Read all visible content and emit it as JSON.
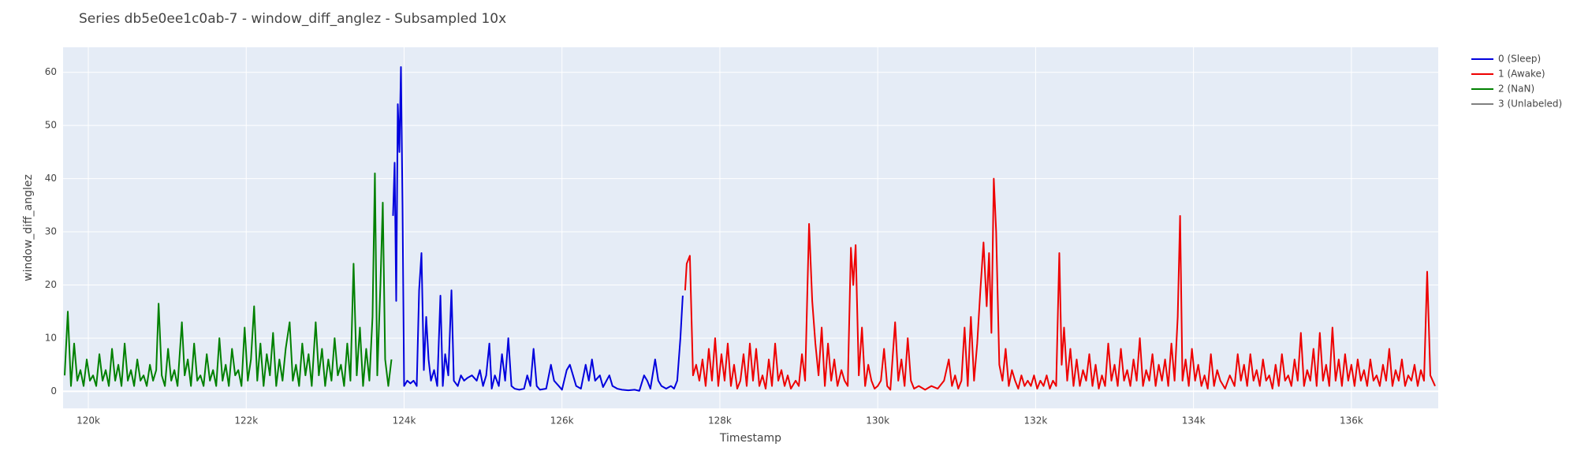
{
  "chart_data": {
    "type": "line",
    "title": "Series db5e0ee1c0ab-7 - window_diff_anglez - Subsampled 10x",
    "x_label": "Timestamp",
    "y_label": "window_diff_anglez",
    "xlim": [
      119680,
      137100
    ],
    "ylim": [
      -3.2,
      64.7
    ],
    "xticks": [
      {
        "value": 120000,
        "label": "120k"
      },
      {
        "value": 122000,
        "label": "122k"
      },
      {
        "value": 124000,
        "label": "124k"
      },
      {
        "value": 126000,
        "label": "126k"
      },
      {
        "value": 128000,
        "label": "128k"
      },
      {
        "value": 130000,
        "label": "130k"
      },
      {
        "value": 132000,
        "label": "132k"
      },
      {
        "value": 134000,
        "label": "134k"
      },
      {
        "value": 136000,
        "label": "136k"
      }
    ],
    "yticks": [
      0,
      10,
      20,
      30,
      40,
      50,
      60
    ],
    "grid": true,
    "legend": "right",
    "series": [
      {
        "name": "0 (Sleep)",
        "color": "#0000dd",
        "x": [
          123860,
          123880,
          123900,
          123920,
          123940,
          123960,
          123980,
          124000,
          124040,
          124080,
          124120,
          124160,
          124190,
          124220,
          124250,
          124280,
          124310,
          124340,
          124380,
          124420,
          124460,
          124490,
          124520,
          124560,
          124600,
          124630,
          124680,
          124720,
          124760,
          124800,
          124860,
          124920,
          124960,
          125000,
          125040,
          125080,
          125110,
          125150,
          125200,
          125240,
          125280,
          125320,
          125360,
          125400,
          125460,
          125520,
          125560,
          125600,
          125640,
          125680,
          125720,
          125800,
          125860,
          125900,
          125960,
          126000,
          126060,
          126100,
          126140,
          126180,
          126240,
          126300,
          126340,
          126380,
          126420,
          126480,
          126520,
          126600,
          126640,
          126700,
          126760,
          126840,
          126920,
          126980,
          127040,
          127080,
          127120,
          127180,
          127220,
          127260,
          127320,
          127380,
          127420,
          127460,
          127500,
          127530
        ],
        "values": [
          33,
          43,
          17,
          54,
          45,
          61,
          35,
          1,
          2,
          1.5,
          2,
          1,
          19,
          26,
          4,
          14,
          6,
          2,
          4,
          1,
          18,
          1,
          7,
          3,
          19,
          2,
          1,
          3,
          2,
          2.5,
          3,
          2,
          4,
          1,
          3,
          9,
          0.5,
          3,
          1,
          7,
          2,
          10,
          1,
          0.5,
          0.3,
          0.5,
          3,
          1,
          8,
          1,
          0.3,
          0.5,
          5,
          2,
          1,
          0.3,
          4,
          5,
          3,
          1,
          0.5,
          5,
          2,
          6,
          2,
          3,
          0.8,
          3,
          1,
          0.5,
          0.3,
          0.2,
          0.3,
          0.1,
          3,
          2,
          0.5,
          6,
          2,
          1,
          0.5,
          1,
          0.5,
          2,
          10,
          18
        ]
      },
      {
        "name": "1 (Awake)",
        "color": "#ee0000",
        "x": [
          127560,
          127580,
          127620,
          127660,
          127700,
          127740,
          127780,
          127820,
          127860,
          127900,
          127940,
          127980,
          128020,
          128060,
          128100,
          128140,
          128180,
          128220,
          128260,
          128300,
          128340,
          128380,
          128420,
          128460,
          128500,
          128540,
          128580,
          128620,
          128660,
          128700,
          128740,
          128780,
          128820,
          128860,
          128900,
          128960,
          129000,
          129040,
          129080,
          129130,
          129170,
          129210,
          129250,
          129290,
          129330,
          129370,
          129410,
          129450,
          129490,
          129540,
          129580,
          129620,
          129660,
          129690,
          129720,
          129760,
          129800,
          129840,
          129880,
          129920,
          129960,
          130000,
          130040,
          130080,
          130120,
          130160,
          130220,
          130260,
          130300,
          130340,
          130380,
          130420,
          130460,
          130520,
          130600,
          130680,
          130760,
          130840,
          130900,
          130940,
          130980,
          131020,
          131060,
          131100,
          131140,
          131180,
          131220,
          131260,
          131300,
          131340,
          131380,
          131410,
          131440,
          131470,
          131500,
          131540,
          131580,
          131620,
          131660,
          131700,
          131740,
          131780,
          131820,
          131860,
          131900,
          131940,
          131980,
          132020,
          132060,
          132100,
          132140,
          132180,
          132220,
          132260,
          132300,
          132330,
          132360,
          132400,
          132440,
          132480,
          132520,
          132560,
          132600,
          132640,
          132680,
          132720,
          132760,
          132800,
          132840,
          132880,
          132920,
          132960,
          133000,
          133040,
          133080,
          133120,
          133160,
          133200,
          133240,
          133280,
          133320,
          133360,
          133400,
          133440,
          133480,
          133520,
          133560,
          133600,
          133640,
          133680,
          133720,
          133760,
          133800,
          133830,
          133860,
          133900,
          133940,
          133980,
          134020,
          134060,
          134100,
          134140,
          134180,
          134220,
          134260,
          134300,
          134340,
          134400,
          134460,
          134520,
          134560,
          134600,
          134640,
          134680,
          134720,
          134760,
          134800,
          134840,
          134880,
          134920,
          134960,
          135000,
          135040,
          135080,
          135120,
          135160,
          135200,
          135240,
          135280,
          135320,
          135360,
          135400,
          135440,
          135480,
          135520,
          135560,
          135600,
          135640,
          135680,
          135720,
          135760,
          135800,
          135840,
          135880,
          135920,
          135960,
          136000,
          136040,
          136080,
          136120,
          136160,
          136200,
          136240,
          136280,
          136320,
          136360,
          136400,
          136440,
          136480,
          136520,
          136560,
          136600,
          136640,
          136680,
          136720,
          136760,
          136800,
          136840,
          136880,
          136920,
          136960,
          137000,
          137060
        ],
        "values": [
          19,
          24,
          25.5,
          3,
          5,
          2,
          6,
          1,
          8,
          2,
          10,
          1,
          7,
          2,
          9,
          1,
          5,
          0.5,
          2,
          7,
          1,
          9,
          2,
          8,
          1,
          3,
          0.5,
          6,
          1,
          9,
          2,
          4,
          1,
          3,
          0.5,
          2,
          1,
          7,
          2,
          31.5,
          17,
          9,
          3,
          12,
          1,
          9,
          2,
          6,
          1,
          4,
          2,
          1,
          27,
          20,
          27.5,
          3,
          12,
          1,
          5,
          2,
          0.5,
          1,
          2,
          8,
          1,
          0.3,
          13,
          2,
          6,
          1,
          10,
          2,
          0.5,
          1,
          0.3,
          1,
          0.5,
          2,
          6,
          1,
          3,
          0.5,
          2,
          12,
          1,
          14,
          2,
          9,
          19,
          28,
          16,
          26,
          11,
          40,
          30,
          5,
          2,
          8,
          1,
          4,
          2,
          0.5,
          3,
          1,
          2,
          1,
          3,
          0.5,
          2,
          1,
          3,
          0.5,
          2,
          1,
          26,
          5,
          12,
          2,
          8,
          1,
          6,
          1,
          4,
          2,
          7,
          1,
          5,
          0.5,
          3,
          1,
          9,
          2,
          5,
          1,
          8,
          2,
          4,
          1,
          6,
          2,
          10,
          1,
          4,
          2,
          7,
          1,
          5,
          2,
          6,
          1,
          9,
          2,
          14,
          33,
          2,
          6,
          1,
          8,
          2,
          5,
          1,
          3,
          0.5,
          7,
          1,
          4,
          2,
          0.5,
          3,
          1,
          7,
          2,
          5,
          1,
          7,
          2,
          4,
          1,
          6,
          2,
          3,
          0.5,
          5,
          1,
          7,
          2,
          3,
          1,
          6,
          2,
          11,
          1,
          4,
          2,
          8,
          1,
          11,
          2,
          5,
          1,
          12,
          2,
          6,
          1,
          7,
          2,
          5,
          1,
          6,
          2,
          4,
          1,
          6,
          2,
          3,
          1,
          5,
          2,
          8,
          1,
          4,
          2,
          6,
          1,
          3,
          2,
          5,
          1,
          4,
          2,
          22.5,
          3,
          1
        ]
      },
      {
        "name": "2 (NaN)",
        "color": "#008000",
        "x": [
          119700,
          119740,
          119780,
          119820,
          119860,
          119900,
          119940,
          119980,
          120020,
          120060,
          120100,
          120140,
          120180,
          120220,
          120260,
          120300,
          120340,
          120380,
          120420,
          120460,
          120500,
          120540,
          120580,
          120620,
          120660,
          120700,
          120740,
          120780,
          120820,
          120860,
          120890,
          120930,
          120970,
          121010,
          121050,
          121090,
          121130,
          121185,
          121220,
          121260,
          121300,
          121340,
          121380,
          121420,
          121460,
          121500,
          121540,
          121580,
          121620,
          121660,
          121700,
          121740,
          121780,
          121820,
          121860,
          121900,
          121940,
          121980,
          122020,
          122060,
          122100,
          122140,
          122180,
          122220,
          122260,
          122300,
          122340,
          122380,
          122420,
          122460,
          122500,
          122550,
          122590,
          122630,
          122670,
          122710,
          122750,
          122790,
          122830,
          122880,
          122920,
          122960,
          123000,
          123040,
          123080,
          123120,
          123160,
          123200,
          123240,
          123280,
          123320,
          123360,
          123400,
          123440,
          123480,
          123520,
          123560,
          123600,
          123630,
          123660,
          123700,
          123730,
          123760,
          123800,
          123840
        ],
        "values": [
          3,
          15,
          1,
          9,
          2,
          4,
          1,
          6,
          2,
          3,
          1,
          7,
          2,
          4,
          1,
          8,
          2,
          5,
          1,
          9,
          2,
          4,
          1,
          6,
          2,
          3,
          1,
          5,
          2,
          4,
          16.5,
          3,
          1,
          8,
          2,
          4,
          1,
          13,
          3,
          6,
          1,
          9,
          2,
          3,
          1,
          7,
          2,
          4,
          1,
          10,
          2,
          5,
          1,
          8,
          3,
          4,
          1,
          12,
          2,
          6,
          16,
          2,
          9,
          1,
          7,
          3,
          11,
          1,
          6,
          2,
          8,
          13,
          2,
          5,
          1,
          9,
          3,
          7,
          1,
          13,
          3,
          8,
          1,
          6,
          2,
          10,
          3,
          5,
          1,
          9,
          2,
          24,
          3,
          12,
          1,
          8,
          2,
          14,
          41,
          3,
          20,
          35.5,
          6,
          1,
          6
        ]
      },
      {
        "name": "3 (Unlabeled)",
        "color": "#808080",
        "x": [],
        "values": []
      }
    ]
  }
}
